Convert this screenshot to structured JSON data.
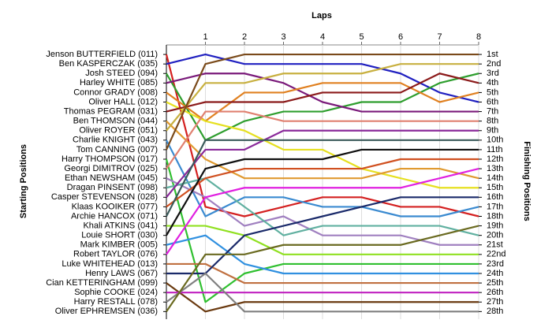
{
  "chart_data": {
    "type": "line",
    "title": "Laps",
    "y_label": "Starting Positions",
    "y2_label": "Finishing Positions",
    "x": [
      0,
      1,
      2,
      3,
      4,
      5,
      6,
      7,
      8
    ],
    "xlim": [
      0,
      8
    ],
    "xticks": [
      1,
      2,
      3,
      4,
      5,
      6,
      7,
      8
    ],
    "ylim": [
      28.8,
      0
    ],
    "y2lim": [
      28.8,
      0
    ],
    "grid": true,
    "yticks": [
      {
        "value": 1,
        "label": "Jenson BUTTERFIELD (011)"
      },
      {
        "value": 2,
        "label": "Ben KASPERCZAK (035)"
      },
      {
        "value": 3,
        "label": "Josh STEED (094)"
      },
      {
        "value": 4,
        "label": "Harley WHITE (085)"
      },
      {
        "value": 5,
        "label": "Connor GRADY (008)"
      },
      {
        "value": 6,
        "label": "Oliver HALL (012)"
      },
      {
        "value": 7,
        "label": "Thomas PEGRAM (031)"
      },
      {
        "value": 8,
        "label": "Ben THOMSON (044)"
      },
      {
        "value": 9,
        "label": "Oliver ROYER (051)"
      },
      {
        "value": 10,
        "label": "Charlie KNIGHT (043)"
      },
      {
        "value": 11,
        "label": "Tom CANNING (007)"
      },
      {
        "value": 12,
        "label": "Harry THOMPSON (017)"
      },
      {
        "value": 13,
        "label": "Georgi DIMITROV (025)"
      },
      {
        "value": 14,
        "label": "Ethan NEWSHAM (045)"
      },
      {
        "value": 15,
        "label": "Dragan PINSENT (098)"
      },
      {
        "value": 16,
        "label": "Casper STEVENSON (028)"
      },
      {
        "value": 17,
        "label": "Klaas KOOIKER (077)"
      },
      {
        "value": 18,
        "label": "Archie HANCOX (071)"
      },
      {
        "value": 19,
        "label": "Khali ATKINS (041)"
      },
      {
        "value": 20,
        "label": "Louie SHORT (030)"
      },
      {
        "value": 21,
        "label": "Mark KIMBER (005)"
      },
      {
        "value": 22,
        "label": "Robert TAYLOR (076)"
      },
      {
        "value": 23,
        "label": "Luke WHITEHEAD (013)"
      },
      {
        "value": 24,
        "label": "Henry LAWS (067)"
      },
      {
        "value": 25,
        "label": "Cian KETTERINGHAM (099)"
      },
      {
        "value": 26,
        "label": "Sophie COOKE (024)"
      },
      {
        "value": 27,
        "label": "Harry RESTALL (078)"
      },
      {
        "value": 28,
        "label": "Oliver EPHREMSEN (036)"
      }
    ],
    "y2ticks": [
      {
        "value": 1,
        "label": "1st"
      },
      {
        "value": 2,
        "label": "2nd"
      },
      {
        "value": 3,
        "label": "3rd"
      },
      {
        "value": 4,
        "label": "4th"
      },
      {
        "value": 5,
        "label": "5th"
      },
      {
        "value": 6,
        "label": "6th"
      },
      {
        "value": 7,
        "label": "7th"
      },
      {
        "value": 8,
        "label": "8th"
      },
      {
        "value": 9,
        "label": "9th"
      },
      {
        "value": 10,
        "label": "10th"
      },
      {
        "value": 11,
        "label": "11th"
      },
      {
        "value": 12,
        "label": "12th"
      },
      {
        "value": 13,
        "label": "13th"
      },
      {
        "value": 14,
        "label": "14th"
      },
      {
        "value": 15,
        "label": "15th"
      },
      {
        "value": 16,
        "label": "16th"
      },
      {
        "value": 17,
        "label": "17th"
      },
      {
        "value": 18,
        "label": "18th"
      },
      {
        "value": 19,
        "label": "19th"
      },
      {
        "value": 20,
        "label": "20th"
      },
      {
        "value": 21,
        "label": "21st"
      },
      {
        "value": 22,
        "label": "22nd"
      },
      {
        "value": 23,
        "label": "23rd"
      },
      {
        "value": 24,
        "label": "24th"
      },
      {
        "value": 25,
        "label": "25th"
      },
      {
        "value": 26,
        "label": "26th"
      },
      {
        "value": 27,
        "label": "27th"
      },
      {
        "value": 28,
        "label": "28th"
      }
    ],
    "series": [
      {
        "color": "#d42020",
        "values": [
          1,
          17,
          18,
          17,
          16,
          16,
          17,
          17,
          18
        ]
      },
      {
        "color": "#2020c0",
        "values": [
          2,
          1,
          2,
          2,
          2,
          2,
          3,
          5,
          6
        ]
      },
      {
        "color": "#2e9e2e",
        "values": [
          3,
          10,
          8,
          7,
          7,
          6,
          6,
          4,
          3
        ]
      },
      {
        "color": "#7a1a7a",
        "values": [
          4,
          3,
          3,
          4,
          6,
          7,
          7,
          7,
          7
        ]
      },
      {
        "color": "#e08020",
        "values": [
          5,
          8,
          5,
          5,
          4,
          4,
          4,
          6,
          5
        ]
      },
      {
        "color": "#e6e020",
        "values": [
          6,
          8,
          9,
          11,
          11,
          13,
          14,
          15,
          15
        ]
      },
      {
        "color": "#8b1a1a",
        "values": [
          7,
          6,
          6,
          6,
          5,
          5,
          5,
          3,
          4
        ]
      },
      {
        "color": "#e09a30",
        "values": [
          8,
          12,
          14,
          14,
          14,
          14,
          13,
          13,
          14
        ]
      },
      {
        "color": "#c8b040",
        "values": [
          9,
          4,
          4,
          3,
          3,
          3,
          2,
          2,
          2
        ]
      },
      {
        "color": "#3a8ad0",
        "values": [
          10,
          18,
          16,
          16,
          17,
          17,
          18,
          18,
          17
        ]
      },
      {
        "color": "#7a4a1a",
        "values": [
          11,
          2,
          1,
          1,
          1,
          1,
          1,
          1,
          1
        ]
      },
      {
        "color": "#30c030",
        "values": [
          12,
          27,
          24,
          23,
          23,
          23,
          23,
          23,
          23
        ]
      },
      {
        "color": "#e08070",
        "values": [
          13,
          7,
          7,
          8,
          8,
          8,
          8,
          8,
          8
        ]
      },
      {
        "color": "#a080c0",
        "values": [
          14,
          16,
          19,
          18,
          20,
          20,
          20,
          21,
          21
        ]
      },
      {
        "color": "#60b0a0",
        "values": [
          15,
          14,
          17,
          20,
          19,
          19,
          19,
          19,
          20
        ]
      },
      {
        "color": "#8a2a9a",
        "values": [
          16,
          11,
          11,
          9,
          9,
          9,
          9,
          9,
          9
        ]
      },
      {
        "color": "#d05020",
        "values": [
          17,
          14,
          13,
          13,
          13,
          13,
          12,
          12,
          12
        ]
      },
      {
        "color": "#3a5a5a",
        "values": [
          18,
          10,
          10,
          10,
          10,
          10,
          10,
          10,
          10
        ]
      },
      {
        "color": "#90e020",
        "values": [
          19,
          19,
          20,
          22,
          22,
          22,
          22,
          22,
          22
        ]
      },
      {
        "color": "#101010",
        "values": [
          20,
          13,
          12,
          12,
          12,
          11,
          11,
          11,
          11
        ]
      },
      {
        "color": "#3090e0",
        "values": [
          21,
          20,
          23,
          24,
          24,
          24,
          24,
          24,
          24
        ]
      },
      {
        "color": "#e020e0",
        "values": [
          22,
          16,
          15,
          15,
          15,
          15,
          15,
          14,
          13
        ]
      },
      {
        "color": "#c07040",
        "values": [
          23,
          23,
          25,
          25,
          25,
          25,
          25,
          25,
          25
        ]
      },
      {
        "color": "#1a2a6a",
        "values": [
          24,
          24,
          20,
          19,
          18,
          17,
          16,
          16,
          16
        ]
      },
      {
        "color": "#6a3a10",
        "values": [
          25,
          28,
          27,
          27,
          27,
          27,
          27,
          27,
          27
        ]
      },
      {
        "color": "#c020c0",
        "values": [
          26,
          26,
          26,
          26,
          26,
          26,
          26,
          26,
          26
        ]
      },
      {
        "color": "#808080",
        "values": [
          27,
          24,
          28,
          28,
          28,
          28,
          28,
          28,
          28
        ]
      },
      {
        "color": "#6a6a20",
        "values": [
          28,
          22,
          22,
          21,
          21,
          21,
          21,
          20,
          19
        ]
      }
    ]
  }
}
